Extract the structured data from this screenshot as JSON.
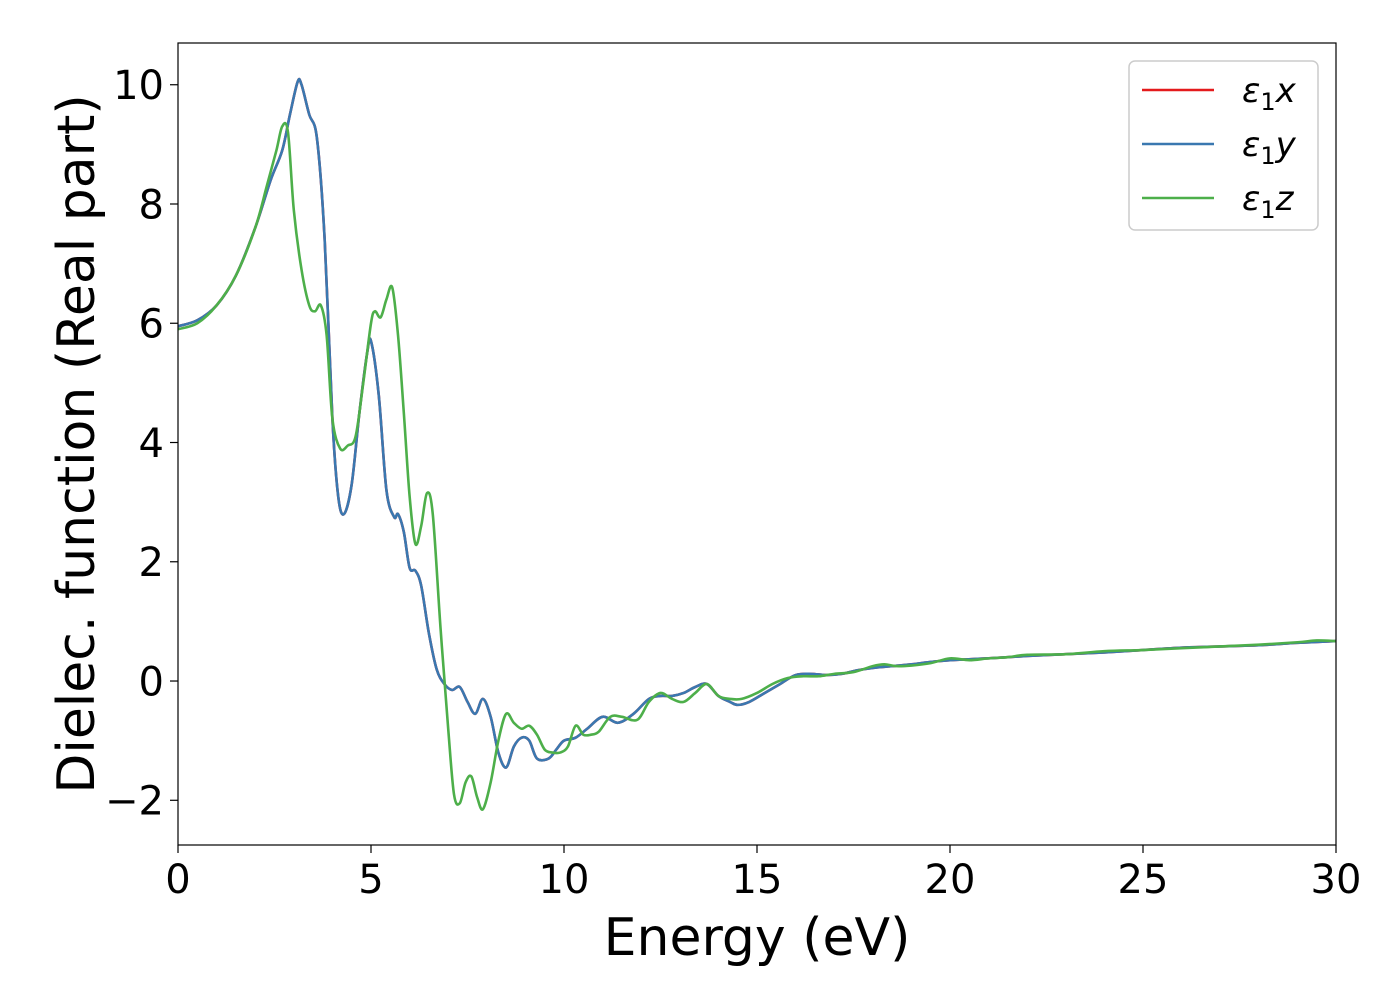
{
  "chart_data": {
    "type": "line",
    "xlabel": "Energy (eV)",
    "ylabel": "Dielec. function (Real part)",
    "xlim": [
      0,
      30
    ],
    "ylim": [
      -2.75,
      10.7
    ],
    "xticks": [
      0,
      5,
      10,
      15,
      20,
      25,
      30
    ],
    "xtick_labels": [
      "0",
      "5",
      "10",
      "15",
      "20",
      "25",
      "30"
    ],
    "yticks": [
      -2,
      0,
      2,
      4,
      6,
      8,
      10
    ],
    "ytick_labels": [
      "−2",
      "0",
      "2",
      "4",
      "6",
      "8",
      "10"
    ],
    "grid": false,
    "legend_position": "top-right",
    "series": [
      {
        "name": "ε1x",
        "legend": {
          "base": "ε",
          "sub": "1",
          "var": "x"
        },
        "color": "#e41a1c",
        "x": [
          0,
          0.5,
          1.0,
          1.5,
          2.0,
          2.4,
          2.7,
          2.9,
          3.1,
          3.2,
          3.4,
          3.6,
          3.8,
          4.0,
          4.15,
          4.3,
          4.5,
          4.7,
          4.9,
          5.0,
          5.2,
          5.4,
          5.6,
          5.7,
          5.85,
          6.0,
          6.15,
          6.3,
          6.5,
          6.7,
          6.9,
          7.1,
          7.3,
          7.5,
          7.7,
          7.9,
          8.1,
          8.3,
          8.5,
          8.7,
          8.9,
          9.1,
          9.3,
          9.6,
          9.8,
          10.0,
          10.3,
          10.6,
          11.0,
          11.4,
          11.8,
          12.2,
          12.5,
          12.8,
          13.1,
          13.4,
          13.7,
          14.0,
          14.3,
          14.5,
          14.8,
          15.2,
          15.6,
          16.0,
          16.4,
          16.8,
          17.2,
          17.6,
          18.0,
          18.5,
          19.0,
          19.5,
          20.0,
          21.0,
          22.0,
          23.0,
          24.0,
          25.0,
          26.0,
          27.0,
          28.0,
          29.0,
          30.0
        ],
        "y": [
          5.95,
          6.05,
          6.3,
          6.8,
          7.6,
          8.4,
          8.9,
          9.5,
          10.05,
          10.0,
          9.5,
          9.1,
          7.4,
          4.4,
          3.1,
          2.8,
          3.3,
          4.5,
          5.5,
          5.7,
          4.8,
          3.2,
          2.75,
          2.8,
          2.5,
          1.9,
          1.85,
          1.6,
          0.8,
          0.2,
          -0.05,
          -0.15,
          -0.1,
          -0.35,
          -0.55,
          -0.3,
          -0.6,
          -1.2,
          -1.45,
          -1.1,
          -0.95,
          -1.0,
          -1.3,
          -1.3,
          -1.15,
          -1.0,
          -0.95,
          -0.8,
          -0.6,
          -0.7,
          -0.55,
          -0.3,
          -0.25,
          -0.25,
          -0.2,
          -0.1,
          -0.05,
          -0.25,
          -0.35,
          -0.4,
          -0.35,
          -0.2,
          -0.05,
          0.1,
          0.12,
          0.1,
          0.12,
          0.18,
          0.22,
          0.25,
          0.28,
          0.32,
          0.35,
          0.38,
          0.42,
          0.45,
          0.48,
          0.52,
          0.56,
          0.58,
          0.6,
          0.64,
          0.67
        ]
      },
      {
        "name": "ε1y",
        "legend": {
          "base": "ε",
          "sub": "1",
          "var": "y"
        },
        "color": "#3a78b0",
        "x": [
          0,
          0.5,
          1.0,
          1.5,
          2.0,
          2.4,
          2.7,
          2.9,
          3.1,
          3.2,
          3.4,
          3.6,
          3.8,
          4.0,
          4.15,
          4.3,
          4.5,
          4.7,
          4.9,
          5.0,
          5.2,
          5.4,
          5.6,
          5.7,
          5.85,
          6.0,
          6.15,
          6.3,
          6.5,
          6.7,
          6.9,
          7.1,
          7.3,
          7.5,
          7.7,
          7.9,
          8.1,
          8.3,
          8.5,
          8.7,
          8.9,
          9.1,
          9.3,
          9.6,
          9.8,
          10.0,
          10.3,
          10.6,
          11.0,
          11.4,
          11.8,
          12.2,
          12.5,
          12.8,
          13.1,
          13.4,
          13.7,
          14.0,
          14.3,
          14.5,
          14.8,
          15.2,
          15.6,
          16.0,
          16.4,
          16.8,
          17.2,
          17.6,
          18.0,
          18.5,
          19.0,
          19.5,
          20.0,
          21.0,
          22.0,
          23.0,
          24.0,
          25.0,
          26.0,
          27.0,
          28.0,
          29.0,
          30.0
        ],
        "y": [
          5.95,
          6.05,
          6.3,
          6.8,
          7.6,
          8.4,
          8.9,
          9.5,
          10.05,
          10.0,
          9.5,
          9.1,
          7.4,
          4.4,
          3.1,
          2.8,
          3.3,
          4.5,
          5.5,
          5.7,
          4.8,
          3.2,
          2.75,
          2.8,
          2.5,
          1.9,
          1.85,
          1.6,
          0.8,
          0.2,
          -0.05,
          -0.15,
          -0.1,
          -0.35,
          -0.55,
          -0.3,
          -0.6,
          -1.2,
          -1.45,
          -1.1,
          -0.95,
          -1.0,
          -1.3,
          -1.3,
          -1.15,
          -1.0,
          -0.95,
          -0.8,
          -0.6,
          -0.7,
          -0.55,
          -0.3,
          -0.25,
          -0.25,
          -0.2,
          -0.1,
          -0.05,
          -0.25,
          -0.35,
          -0.4,
          -0.35,
          -0.2,
          -0.05,
          0.1,
          0.12,
          0.1,
          0.12,
          0.18,
          0.22,
          0.25,
          0.28,
          0.32,
          0.35,
          0.38,
          0.42,
          0.45,
          0.48,
          0.52,
          0.56,
          0.58,
          0.6,
          0.64,
          0.67
        ]
      },
      {
        "name": "ε1z",
        "legend": {
          "base": "ε",
          "sub": "1",
          "var": "z"
        },
        "color": "#4daf4a",
        "x": [
          0,
          0.5,
          1.0,
          1.5,
          2.0,
          2.3,
          2.55,
          2.7,
          2.85,
          3.0,
          3.2,
          3.4,
          3.55,
          3.7,
          3.85,
          4.0,
          4.2,
          4.4,
          4.6,
          4.8,
          5.0,
          5.1,
          5.25,
          5.4,
          5.55,
          5.7,
          5.85,
          6.0,
          6.15,
          6.3,
          6.45,
          6.6,
          6.8,
          7.0,
          7.15,
          7.3,
          7.45,
          7.6,
          7.75,
          7.9,
          8.1,
          8.3,
          8.5,
          8.7,
          8.9,
          9.1,
          9.3,
          9.5,
          9.7,
          9.9,
          10.1,
          10.3,
          10.5,
          10.7,
          10.9,
          11.2,
          11.5,
          11.9,
          12.2,
          12.5,
          12.8,
          13.1,
          13.4,
          13.7,
          14.0,
          14.3,
          14.6,
          15.0,
          15.4,
          15.8,
          16.2,
          16.6,
          17.0,
          17.5,
          18.0,
          18.3,
          18.6,
          19.0,
          19.5,
          20.0,
          20.5,
          21.0,
          21.5,
          22.0,
          23.0,
          24.0,
          25.0,
          26.0,
          27.0,
          28.0,
          29.0,
          29.5,
          30.0
        ],
        "y": [
          5.9,
          6.0,
          6.3,
          6.8,
          7.6,
          8.3,
          8.9,
          9.3,
          9.2,
          7.9,
          6.9,
          6.3,
          6.2,
          6.3,
          5.8,
          4.4,
          3.9,
          3.95,
          4.1,
          5.0,
          6.0,
          6.2,
          6.1,
          6.4,
          6.6,
          5.8,
          4.5,
          3.1,
          2.3,
          2.6,
          3.15,
          2.8,
          0.9,
          -0.8,
          -1.9,
          -2.05,
          -1.7,
          -1.6,
          -1.95,
          -2.15,
          -1.7,
          -1.0,
          -0.55,
          -0.7,
          -0.8,
          -0.75,
          -0.9,
          -1.15,
          -1.2,
          -1.2,
          -1.1,
          -0.75,
          -0.9,
          -0.9,
          -0.85,
          -0.6,
          -0.6,
          -0.65,
          -0.35,
          -0.2,
          -0.3,
          -0.35,
          -0.2,
          -0.05,
          -0.25,
          -0.3,
          -0.3,
          -0.2,
          -0.05,
          0.05,
          0.08,
          0.08,
          0.12,
          0.15,
          0.25,
          0.28,
          0.25,
          0.26,
          0.3,
          0.38,
          0.35,
          0.38,
          0.4,
          0.44,
          0.45,
          0.5,
          0.52,
          0.55,
          0.58,
          0.61,
          0.65,
          0.68,
          0.67
        ]
      }
    ]
  }
}
